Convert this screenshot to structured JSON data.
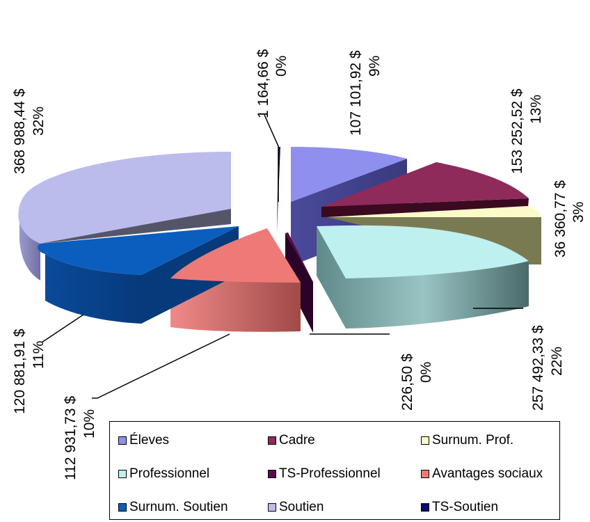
{
  "chart_data": {
    "type": "pie",
    "style": "3d-exploded",
    "legend_position": "bottom",
    "slices": [
      {
        "name": "Éleves",
        "value": 107101.92,
        "value_label": "107 101,92 $",
        "percent_label": "9%",
        "color": "#8f8ff0"
      },
      {
        "name": "Cadre",
        "value": 153252.52,
        "value_label": "153 252,52 $",
        "percent_label": "13%",
        "color": "#8e2b5a"
      },
      {
        "name": "Surnum. Prof.",
        "value": 36360.77,
        "value_label": "36 360,77 $",
        "percent_label": "3%",
        "color": "#fafbc8"
      },
      {
        "name": "Professionnel",
        "value": 257492.33,
        "value_label": "257 492,33 $",
        "percent_label": "22%",
        "color": "#bff0f0"
      },
      {
        "name": "TS-Professionnel",
        "value": 226.5,
        "value_label": "226,50 $",
        "percent_label": "0%",
        "color": "#5a0a4a"
      },
      {
        "name": "Avantages sociaux",
        "value": 112931.73,
        "value_label": "112 931,73 $",
        "percent_label": "10%",
        "color": "#ee7a78"
      },
      {
        "name": "Surnum. Soutien",
        "value": 120881.91,
        "value_label": "120 881,91 $",
        "percent_label": "11%",
        "color": "#0a5ebe"
      },
      {
        "name": "Soutien",
        "value": 368988.44,
        "value_label": "368 988,44 $",
        "percent_label": "32%",
        "color": "#bcbcec"
      },
      {
        "name": "TS-Soutien",
        "value": 1164.66,
        "value_label": "1 164,66 $",
        "percent_label": "0%",
        "color": "#0a0a6a"
      }
    ]
  }
}
